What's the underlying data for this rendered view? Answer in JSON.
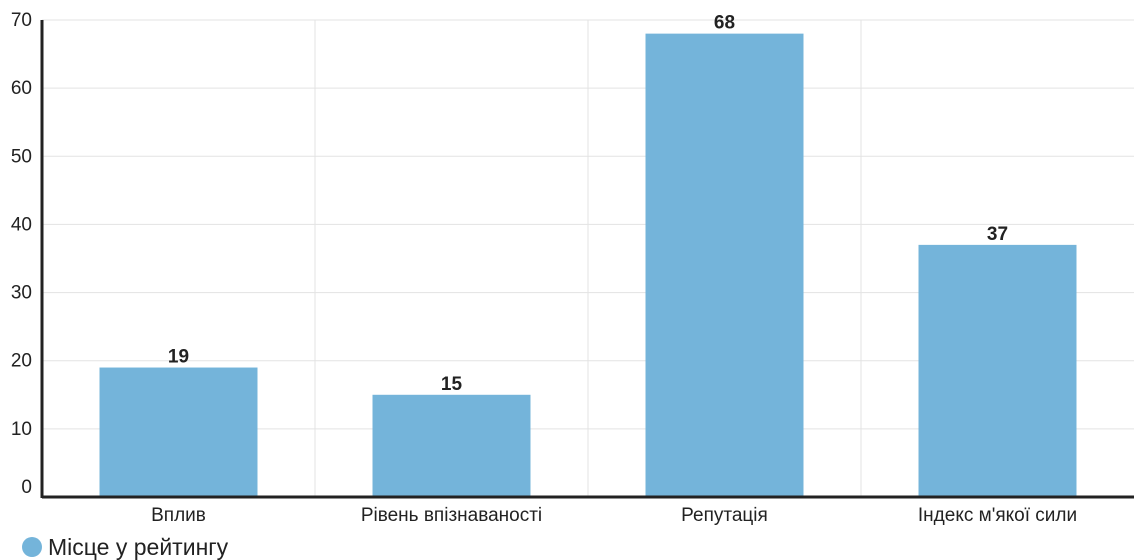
{
  "chart_data": {
    "type": "bar",
    "categories": [
      "Вплив",
      "Рівень впізнаваності",
      "Репутація",
      "Індекс м'якої сили"
    ],
    "series": [
      {
        "name": "Місце у рейтингу",
        "values": [
          19,
          15,
          68,
          37
        ],
        "color": "#74b4da"
      }
    ],
    "data_labels": [
      "19",
      "15",
      "68",
      "37"
    ],
    "ylim": [
      0,
      70
    ],
    "yticks": [
      0,
      10,
      20,
      30,
      40,
      50,
      60,
      70
    ],
    "ytick_labels": [
      "0",
      "10",
      "20",
      "30",
      "40",
      "50",
      "60",
      "70"
    ],
    "grid": true,
    "legend_position": "bottom-left",
    "title": "",
    "xlabel": "",
    "ylabel": ""
  },
  "legend": {
    "label": "Місце у рейтингу",
    "color": "#74b4da"
  }
}
